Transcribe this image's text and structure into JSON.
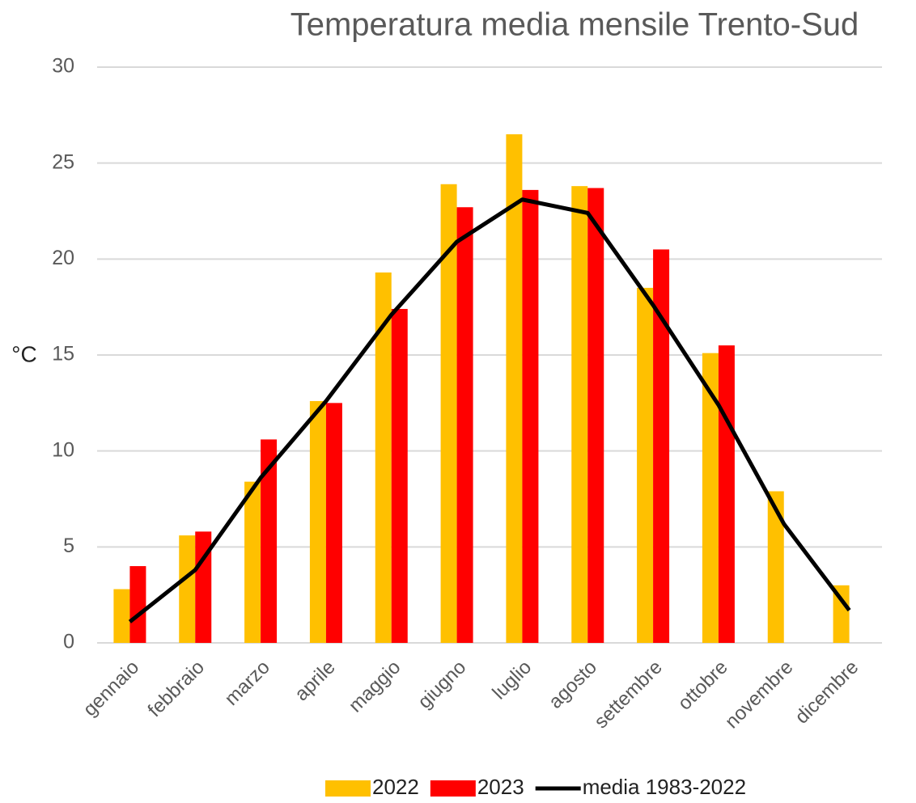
{
  "chart_data": {
    "type": "bar",
    "title": "Temperatura media mensile Trento-Sud",
    "y_label": "°C",
    "categories": [
      "gennaio",
      "febbraio",
      "marzo",
      "aprile",
      "maggio",
      "giugno",
      "luglio",
      "agosto",
      "settembre",
      "ottobre",
      "novembre",
      "dicembre"
    ],
    "series": [
      {
        "name": "2022",
        "type": "bar",
        "color": "#ffc000",
        "values": [
          2.8,
          5.6,
          8.4,
          12.6,
          19.3,
          23.9,
          26.5,
          23.8,
          18.5,
          15.1,
          7.9,
          3.0
        ]
      },
      {
        "name": "2023",
        "type": "bar",
        "color": "#ff0000",
        "values": [
          4.0,
          5.8,
          10.6,
          12.5,
          17.4,
          22.7,
          23.6,
          23.7,
          20.5,
          15.5,
          null,
          null
        ]
      },
      {
        "name": "media 1983-2022",
        "type": "line",
        "color": "#000000",
        "values": [
          1.1,
          3.8,
          8.6,
          12.6,
          17.1,
          20.9,
          23.1,
          22.4,
          17.6,
          12.4,
          6.2,
          1.7
        ]
      }
    ],
    "ylim": [
      0,
      30
    ],
    "yticks": [
      0,
      5,
      10,
      15,
      20,
      25,
      30
    ],
    "grid": true,
    "legend": "bottom"
  }
}
